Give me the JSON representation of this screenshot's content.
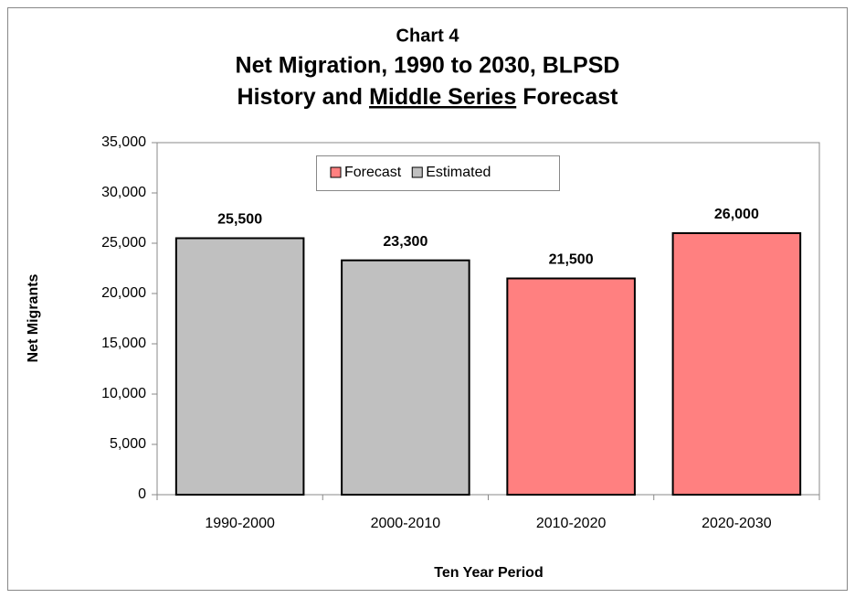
{
  "chart_data": {
    "type": "bar",
    "title": [
      "Chart 4",
      "Net Migration, 1990 to 2030, BLPSD"
    ],
    "subtitle": {
      "before": "History and",
      "underlined": "Middle Series",
      "after": "Forecast"
    },
    "x_label": "Ten Year Period",
    "y_label": "Net Migrants",
    "categories": [
      "1990-2000",
      "2000-2010",
      "2010-2020",
      "2020-2030"
    ],
    "series": [
      {
        "name": "Forecast",
        "color": "#ff8080",
        "values": [
          null,
          null,
          21500,
          26000
        ],
        "value_labels": [
          null,
          null,
          "21,500",
          "26,000"
        ]
      },
      {
        "name": "Estimated",
        "color": "#c0c0c0",
        "values": [
          25500,
          23300,
          null,
          null
        ],
        "value_labels": [
          "25,500",
          "23,300",
          null,
          null
        ]
      }
    ],
    "ylim": [
      0,
      35000
    ],
    "yticks": [
      0,
      {
        "value": 5000,
        "label": "5,000"
      },
      {
        "value": 10000,
        "label": "10,000"
      },
      {
        "value": 15000,
        "label": "15,000"
      },
      {
        "value": 20000,
        "label": "20,000"
      },
      {
        "value": 25000,
        "label": "25,000"
      },
      {
        "value": 30000,
        "label": "30,000"
      },
      {
        "value": 35000,
        "label": "35,000"
      }
    ],
    "legend": "top"
  }
}
